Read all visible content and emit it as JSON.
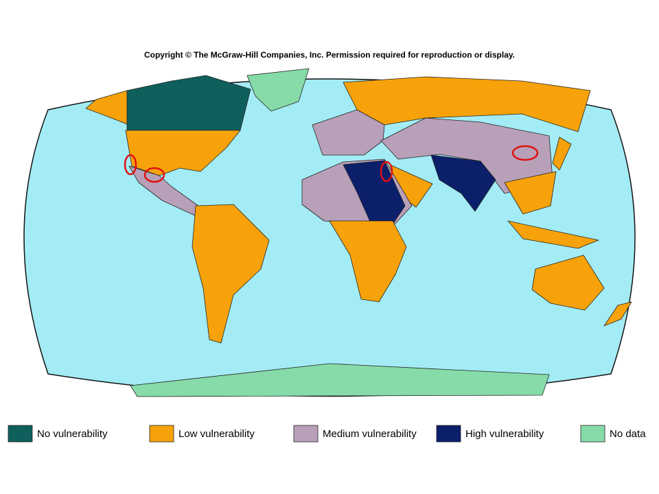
{
  "copyright": "Copyright © The McGraw-Hill Companies, Inc. Permission required for reproduction or display.",
  "legend": [
    {
      "label": "No vulnerability",
      "color": "#0f5f5c"
    },
    {
      "label": "Low vulnerability",
      "color": "#f7a20a"
    },
    {
      "label": "Medium vulnerability",
      "color": "#b8a0b8"
    },
    {
      "label": "High vulnerability",
      "color": "#0b1f6b"
    },
    {
      "label": "No data",
      "color": "#86dba8"
    }
  ]
}
